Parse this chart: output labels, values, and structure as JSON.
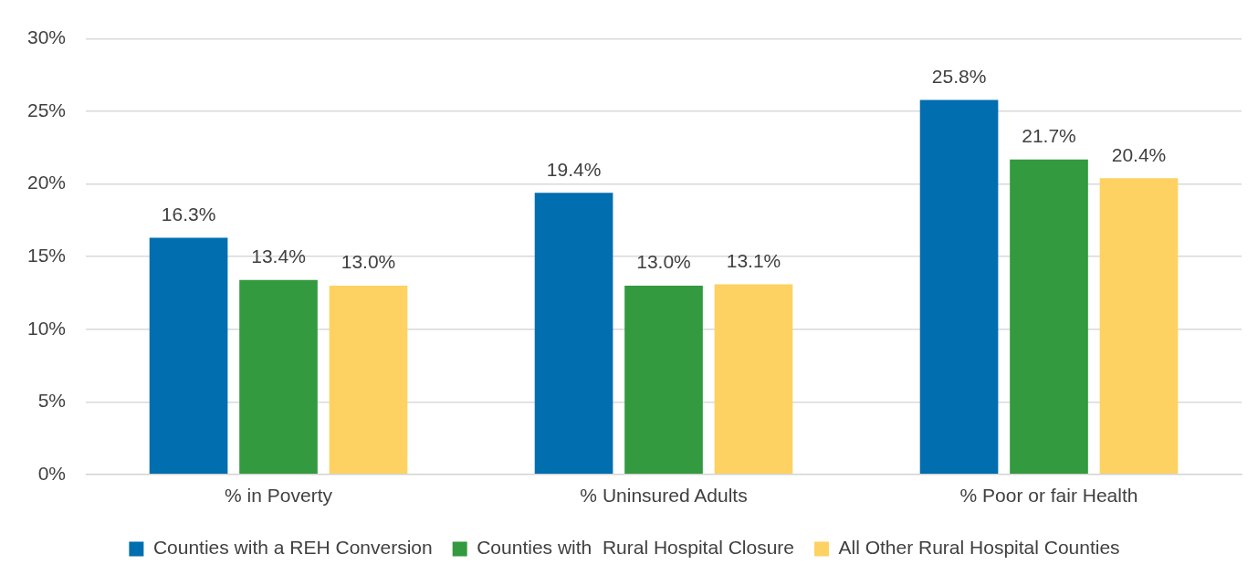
{
  "chart_data": {
    "type": "bar",
    "categories": [
      "% in Poverty",
      "% Uninsured Adults",
      "% Poor or fair Health"
    ],
    "series": [
      {
        "name": "Counties with a REH Conversion",
        "color": "#006eaf",
        "values": [
          16.3,
          19.4,
          25.8
        ],
        "value_labels": [
          "16.3%",
          "19.4%",
          "25.8%"
        ]
      },
      {
        "name": "Counties with  Rural Hospital Closure",
        "color": "#339a3f",
        "values": [
          13.4,
          13.0,
          21.7
        ],
        "value_labels": [
          "13.4%",
          "13.0%",
          "21.7%"
        ]
      },
      {
        "name": "All Other Rural Hospital Counties",
        "color": "#fdd262",
        "values": [
          13.0,
          13.1,
          20.4
        ],
        "value_labels": [
          "13.0%",
          "13.1%",
          "20.4%"
        ]
      }
    ],
    "ylim": [
      0,
      30
    ],
    "yticks": [
      {
        "value": 0,
        "label": "0%"
      },
      {
        "value": 5,
        "label": "5%"
      },
      {
        "value": 10,
        "label": "10%"
      },
      {
        "value": 15,
        "label": "15%"
      },
      {
        "value": 20,
        "label": "20%"
      },
      {
        "value": 25,
        "label": "25%"
      },
      {
        "value": 30,
        "label": "30%"
      }
    ],
    "grid": "y",
    "legend": "bottom"
  }
}
